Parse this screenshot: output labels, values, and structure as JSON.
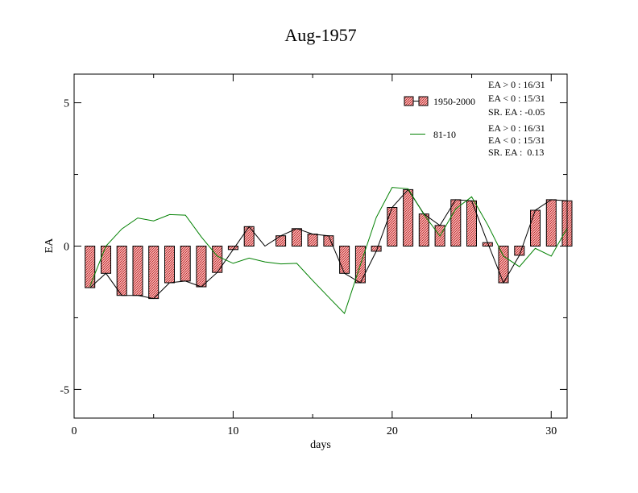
{
  "chart_data": {
    "type": "bar",
    "title": "Aug-1957",
    "xlabel": "days",
    "ylabel": "EA",
    "xlim": [
      0,
      31
    ],
    "ylim": [
      -6,
      6
    ],
    "x_ticks": [
      0,
      10,
      20,
      30
    ],
    "y_ticks": [
      -5,
      0,
      5
    ],
    "grid": false,
    "legend_position": "top-right",
    "x": [
      1,
      2,
      3,
      4,
      5,
      6,
      7,
      8,
      9,
      10,
      11,
      12,
      13,
      14,
      15,
      16,
      17,
      18,
      19,
      20,
      21,
      22,
      23,
      24,
      25,
      26,
      27,
      28,
      29,
      30,
      31
    ],
    "series": [
      {
        "name": "1950-2000",
        "kind": "bar",
        "color": "#e88a8a",
        "values": [
          -1.45,
          -0.95,
          -1.72,
          -1.72,
          -1.83,
          -1.28,
          -1.22,
          -1.42,
          -0.92,
          -0.12,
          0.68,
          0.0,
          0.36,
          0.61,
          0.42,
          0.36,
          -0.95,
          -1.28,
          -0.18,
          1.35,
          1.97,
          1.12,
          0.72,
          1.62,
          1.58,
          0.12,
          -1.28,
          -0.32,
          1.25,
          1.62,
          1.58
        ]
      },
      {
        "name": "81-10",
        "kind": "line",
        "color": "#008000",
        "values": [
          -1.4,
          0.0,
          0.6,
          0.98,
          0.88,
          1.1,
          1.08,
          0.32,
          -0.35,
          -0.6,
          -0.42,
          -0.55,
          -0.62,
          -0.6,
          -1.2,
          -1.78,
          -2.35,
          -0.65,
          1.0,
          2.05,
          2.0,
          1.1,
          0.35,
          1.3,
          1.72,
          0.75,
          -0.35,
          -0.72,
          -0.08,
          -0.35,
          0.62
        ]
      }
    ],
    "stats": [
      {
        "line1": "EA > 0 : 16/31",
        "line2": "EA < 0 : 15/31",
        "line3": "SR. EA : -0.05"
      },
      {
        "line1": "EA > 0 : 16/31",
        "line2": "EA < 0 : 15/31",
        "line3": "SR. EA :  0.13"
      }
    ]
  }
}
